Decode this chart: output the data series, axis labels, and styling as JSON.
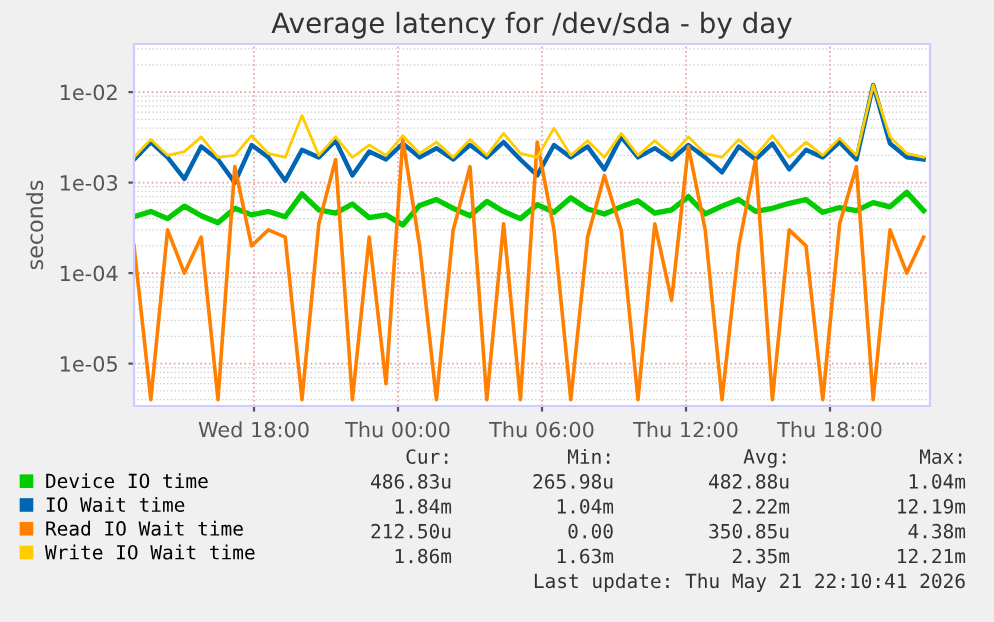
{
  "chart_data": {
    "type": "line",
    "title": "Average latency for /dev/sda - by day",
    "ylabel": "seconds",
    "log": "y",
    "grid": true,
    "legend": "bottom",
    "x": [
      "2026-05-20T13:00",
      "2026-05-20T13:42",
      "2026-05-20T14:24",
      "2026-05-20T15:06",
      "2026-05-20T15:48",
      "2026-05-20T16:30",
      "2026-05-20T17:12",
      "2026-05-20T17:54",
      "2026-05-20T18:36",
      "2026-05-20T19:18",
      "2026-05-20T20:00",
      "2026-05-20T20:42",
      "2026-05-20T21:24",
      "2026-05-20T22:06",
      "2026-05-20T22:48",
      "2026-05-20T23:30",
      "2026-05-21T00:12",
      "2026-05-21T00:54",
      "2026-05-21T01:36",
      "2026-05-21T02:18",
      "2026-05-21T03:00",
      "2026-05-21T03:42",
      "2026-05-21T04:24",
      "2026-05-21T05:06",
      "2026-05-21T05:48",
      "2026-05-21T06:30",
      "2026-05-21T07:12",
      "2026-05-21T07:54",
      "2026-05-21T08:36",
      "2026-05-21T09:18",
      "2026-05-21T10:00",
      "2026-05-21T10:42",
      "2026-05-21T11:24",
      "2026-05-21T12:06",
      "2026-05-21T12:48",
      "2026-05-21T13:30",
      "2026-05-21T14:12",
      "2026-05-21T14:54",
      "2026-05-21T15:36",
      "2026-05-21T16:18",
      "2026-05-21T17:00",
      "2026-05-21T17:42",
      "2026-05-21T18:24",
      "2026-05-21T19:06",
      "2026-05-21T19:48",
      "2026-05-21T20:30",
      "2026-05-21T21:12",
      "2026-05-21T21:54"
    ],
    "xlim": [
      "2026-05-20T13:00",
      "2026-05-21T22:10"
    ],
    "xticks": [
      {
        "value": "2026-05-20T18:00",
        "label": "Wed 18:00"
      },
      {
        "value": "2026-05-21T00:00",
        "label": "Thu 00:00"
      },
      {
        "value": "2026-05-21T06:00",
        "label": "Thu 06:00"
      },
      {
        "value": "2026-05-21T12:00",
        "label": "Thu 12:00"
      },
      {
        "value": "2026-05-21T18:00",
        "label": "Thu 18:00"
      }
    ],
    "ylim": [
      3.4e-06,
      0.034
    ],
    "yticks": [
      {
        "value": 1e-05,
        "label": "1e-05"
      },
      {
        "value": 0.0001,
        "label": "1e-04"
      },
      {
        "value": 0.001,
        "label": "1e-03"
      },
      {
        "value": 0.01,
        "label": "1e-02"
      }
    ],
    "series": [
      {
        "name": "Device IO time",
        "color": "#00cc00",
        "values": [
          0.00042,
          0.00048,
          0.0004,
          0.00055,
          0.00043,
          0.00036,
          0.00052,
          0.00044,
          0.00048,
          0.00042,
          0.00075,
          0.0005,
          0.00046,
          0.00058,
          0.00041,
          0.00044,
          0.00034,
          0.00056,
          0.00065,
          0.00052,
          0.00043,
          0.00062,
          0.00048,
          0.0004,
          0.00057,
          0.00047,
          0.00068,
          0.00051,
          0.00045,
          0.00054,
          0.00063,
          0.00046,
          0.0005,
          0.0007,
          0.00045,
          0.00055,
          0.00065,
          0.00048,
          0.00052,
          0.00059,
          0.00065,
          0.00047,
          0.00053,
          0.00049,
          0.0006,
          0.00054,
          0.00078,
          0.00049
        ]
      },
      {
        "name": "IO Wait time",
        "color": "#0066b3",
        "values": [
          0.0018,
          0.0028,
          0.0019,
          0.0011,
          0.0025,
          0.0018,
          0.001,
          0.0026,
          0.0019,
          0.00105,
          0.0023,
          0.0019,
          0.0029,
          0.0012,
          0.0022,
          0.0018,
          0.0027,
          0.0019,
          0.0024,
          0.0018,
          0.0026,
          0.0019,
          0.0028,
          0.0018,
          0.0012,
          0.0026,
          0.0019,
          0.0025,
          0.0014,
          0.0032,
          0.0019,
          0.0024,
          0.0018,
          0.0026,
          0.0019,
          0.0013,
          0.0025,
          0.0018,
          0.0027,
          0.0014,
          0.0023,
          0.0019,
          0.0028,
          0.0018,
          0.012,
          0.0027,
          0.0019,
          0.0018
        ]
      },
      {
        "name": "Read IO Wait time",
        "color": "#ff8000",
        "values": [
          0.0002,
          4e-06,
          0.0003,
          0.0001,
          0.00025,
          4e-06,
          0.0015,
          0.0002,
          0.0003,
          0.00025,
          4e-06,
          0.00035,
          0.0018,
          4e-06,
          0.00025,
          6e-06,
          0.003,
          0.0002,
          4e-06,
          0.0003,
          0.0015,
          4e-06,
          0.00035,
          4e-06,
          0.0028,
          0.0003,
          4e-06,
          0.00025,
          0.0012,
          0.0003,
          4e-06,
          0.00035,
          5e-05,
          0.0025,
          0.0003,
          4e-06,
          0.0002,
          0.0018,
          4e-06,
          0.0003,
          0.0002,
          4e-06,
          0.00035,
          0.0015,
          4e-06,
          0.0003,
          0.0001,
          0.00025
        ]
      },
      {
        "name": "Write IO Wait time",
        "color": "#ffcc00",
        "values": [
          0.0019,
          0.003,
          0.002,
          0.0022,
          0.0032,
          0.0019,
          0.002,
          0.0033,
          0.0021,
          0.0019,
          0.0055,
          0.002,
          0.0032,
          0.0019,
          0.0026,
          0.002,
          0.0033,
          0.0021,
          0.0028,
          0.0019,
          0.003,
          0.002,
          0.0035,
          0.0021,
          0.0019,
          0.004,
          0.002,
          0.0029,
          0.0019,
          0.0035,
          0.002,
          0.0029,
          0.002,
          0.0032,
          0.0021,
          0.0019,
          0.003,
          0.002,
          0.0033,
          0.0019,
          0.0028,
          0.002,
          0.0031,
          0.002,
          0.012,
          0.0032,
          0.0021,
          0.0019
        ]
      }
    ],
    "annotations": [
      "Cur:",
      "Min:",
      "Avg:",
      "Max:",
      "486.83u",
      "265.98u",
      "482.88u",
      "1.04m",
      "1.84m",
      "1.04m",
      "2.22m",
      "12.19m",
      "212.50u",
      "0.00",
      "350.85u",
      "4.38m",
      "1.86m",
      "1.63m",
      "2.35m",
      "12.21m",
      "Last update: Thu May 21 22:10:41 2026"
    ]
  }
}
